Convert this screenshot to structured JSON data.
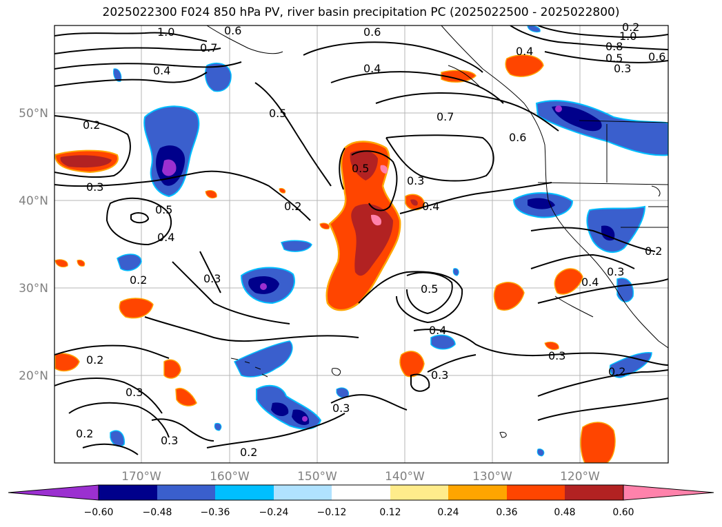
{
  "title": "2025022300 F024 850 hPa PV, river basin precipitation PC (2025022500 - 2025022800)",
  "lat_labels": [
    "50°N",
    "40°N",
    "30°N",
    "20°N"
  ],
  "lon_labels": [
    "170°W",
    "160°W",
    "150°W",
    "140°W",
    "130°W",
    "120°W"
  ],
  "colorbar": {
    "ticks": [
      "−0.60",
      "−0.48",
      "−0.36",
      "−0.24",
      "−0.12",
      "0.12",
      "0.24",
      "0.36",
      "0.48",
      "0.60"
    ],
    "colors": [
      "#9b30d0",
      "#00008b",
      "#3a5fcd",
      "#00bfff",
      "#b0e2ff",
      "#ffffff",
      "#ffec8b",
      "#ffa500",
      "#ff4500",
      "#b22222",
      "#ff82ab"
    ]
  },
  "contour_labels": [
    "1.0",
    "0.6",
    "0.6",
    "0.7",
    "0.4",
    "0.4",
    "0.2",
    "0.5",
    "0.7",
    "0.6",
    "1.0",
    "0.8",
    "0.5",
    "0.3",
    "0.6",
    "0.4",
    "0.5",
    "0.3",
    "0.4",
    "0.2",
    "0.3",
    "0.5",
    "0.4",
    "0.2",
    "0.3",
    "0.5",
    "0.4",
    "0.3",
    "0.2",
    "0.2",
    "0.3",
    "0.3",
    "0.2",
    "0.2",
    "0.3",
    "0.3",
    "0.2",
    "0.2",
    "0.4",
    "0.3"
  ],
  "map_features": {
    "projection": "lat-lon",
    "lon_range_deg": [
      -180,
      -110
    ],
    "lat_range_deg": [
      10,
      60
    ],
    "grid": true,
    "coastlines": true
  }
}
